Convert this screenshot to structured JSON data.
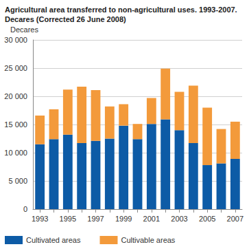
{
  "chart_data": {
    "type": "bar",
    "title": "Agricultural area transferred to non-agricultural uses. 1993-2007. Decares (Corrected 26 June 2008)",
    "y_label": "Decares",
    "categories": [
      "1993",
      null,
      "1995",
      null,
      "1997",
      null,
      "1999",
      null,
      "2001",
      null,
      "2003",
      null,
      "2005",
      null,
      "2007"
    ],
    "series": [
      {
        "name": "Cultivated areas",
        "color": "#0d5ba6",
        "values": [
          11500,
          12400,
          13200,
          11700,
          12100,
          12500,
          14800,
          12400,
          15100,
          15900,
          14000,
          11700,
          7800,
          8100,
          8900
        ]
      },
      {
        "name": "Cultivable areas",
        "color": "#f39a3b",
        "values": [
          5100,
          5300,
          8000,
          10000,
          9000,
          5700,
          3800,
          2700,
          4600,
          9000,
          6800,
          10200,
          10200,
          6100,
          6600
        ]
      }
    ],
    "stacked": true,
    "ylim": [
      0,
      30000
    ],
    "yticks": [
      0,
      {
        "value": 5000,
        "label": "5 000"
      },
      {
        "value": 10000,
        "label": "10 000"
      },
      {
        "value": 15000,
        "label": "15 000"
      },
      {
        "value": 20000,
        "label": "20 000"
      },
      {
        "value": 25000,
        "label": "25 000"
      },
      {
        "value": 30000,
        "label": "30 000"
      }
    ],
    "grid": true,
    "legend": "bottom"
  }
}
